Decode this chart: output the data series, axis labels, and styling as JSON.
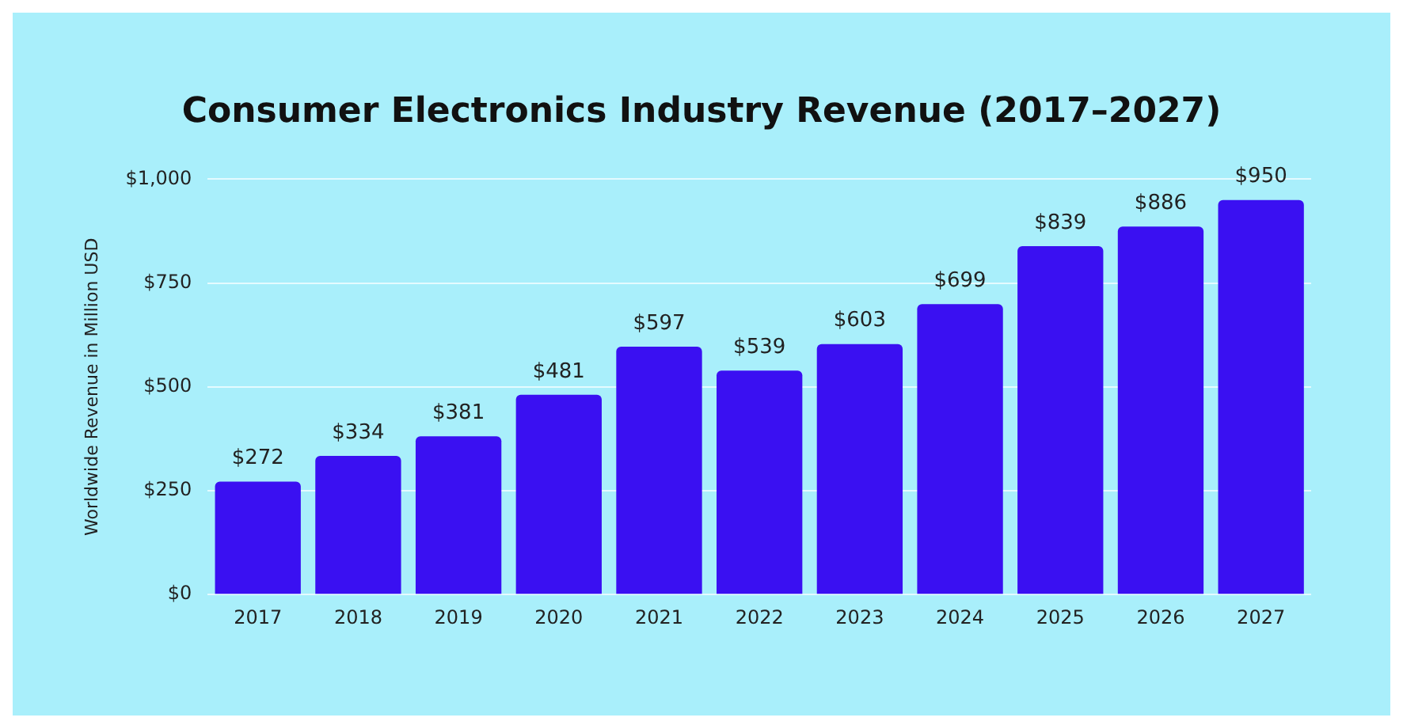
{
  "chart_data": {
    "type": "bar",
    "title": "Consumer Electronics Industry Revenue (2017–2027)",
    "ylabel": "Worldwide Revenue in Million USD",
    "categories": [
      "2017",
      "2018",
      "2019",
      "2020",
      "2021",
      "2022",
      "2023",
      "2024",
      "2025",
      "2026",
      "2027"
    ],
    "values": [
      272,
      334,
      381,
      481,
      597,
      539,
      603,
      699,
      839,
      886,
      950
    ],
    "value_labels": [
      "$272",
      "$334",
      "$381",
      "$481",
      "$597",
      "$539",
      "$603",
      "$699",
      "$839",
      "$886",
      "$950"
    ],
    "color": "#3a10f2",
    "ylim": [
      0,
      1000
    ],
    "yticks": [
      {
        "value": 0,
        "label": "$0"
      },
      {
        "value": 250,
        "label": "$250"
      },
      {
        "value": 500,
        "label": "$500"
      },
      {
        "value": 750,
        "label": "$750"
      },
      {
        "value": 1000,
        "label": "$1,000"
      }
    ],
    "grid": "y",
    "legend": false
  }
}
